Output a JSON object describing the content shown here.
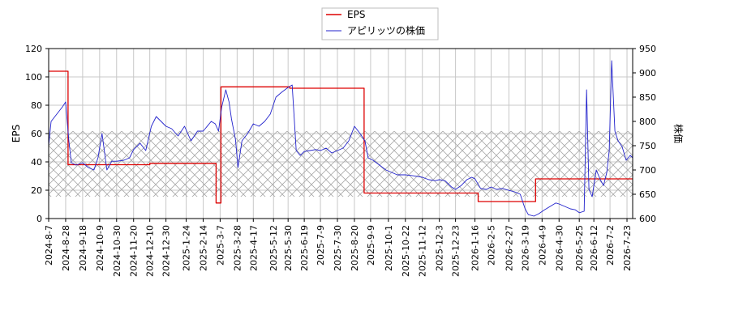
{
  "chart_data": {
    "type": "line",
    "legend": {
      "placement": "top-center",
      "entries": [
        {
          "label": "EPS",
          "color": "#dd0000"
        },
        {
          "label": "アピリッツの株価",
          "color": "#2222cc"
        }
      ]
    },
    "left_axis": {
      "label": "EPS",
      "ylim": [
        0,
        120
      ],
      "ticks": [
        "0",
        "20",
        "40",
        "60",
        "80",
        "100",
        "120"
      ]
    },
    "right_axis": {
      "label": "株価",
      "ylim": [
        600,
        950
      ],
      "ticks": [
        "600",
        "650",
        "700",
        "750",
        "800",
        "850",
        "900",
        "950"
      ]
    },
    "x_dates": [
      "2024-8-7",
      "2024-8-28",
      "2024-9-18",
      "2024-10-9",
      "2024-10-30",
      "2024-11-20",
      "2024-12-10",
      "2024-12-30",
      "2025-1-24",
      "2025-2-14",
      "2025-3-7",
      "2025-3-28",
      "2025-4-17",
      "2025-5-12",
      "2025-5-30",
      "2025-6-19",
      "2025-7-9",
      "2025-7-30",
      "2025-8-20",
      "2025-9-9",
      "2025-10-1",
      "2025-10-22",
      "2025-11-12",
      "2025-12-3",
      "2025-12-23",
      "2026-1-16",
      "2026-2-5",
      "2026-2-27",
      "2026-3-19",
      "2026-4-9",
      "2026-4-30",
      "2026-5-25",
      "2026-6-12",
      "2026-7-2",
      "2026-7-23"
    ],
    "hatched_band": {
      "axis": "right",
      "range": [
        645,
        780
      ]
    },
    "grid": true,
    "series": [
      {
        "name": "EPS",
        "axis": "left",
        "color": "#dd0000",
        "points": [
          [
            "2024-8-7",
            104
          ],
          [
            "2024-8-31",
            104
          ],
          [
            "2024-8-31",
            38
          ],
          [
            "2024-12-10",
            38
          ],
          [
            "2024-12-10",
            39
          ],
          [
            "2025-3-2",
            39
          ],
          [
            "2025-3-2",
            11
          ],
          [
            "2025-3-8",
            11
          ],
          [
            "2025-3-8",
            93
          ],
          [
            "2025-6-1",
            93
          ],
          [
            "2025-6-1",
            92
          ],
          [
            "2025-9-1",
            92
          ],
          [
            "2025-9-1",
            18
          ],
          [
            "2026-1-20",
            18
          ],
          [
            "2026-1-20",
            12
          ],
          [
            "2026-4-1",
            12
          ],
          [
            "2026-4-1",
            28
          ],
          [
            "2026-7-30",
            28
          ]
        ]
      },
      {
        "name": "アピリッツの株価",
        "axis": "right",
        "color": "#2222cc",
        "points": [
          [
            "2024-8-7",
            750
          ],
          [
            "2024-8-10",
            800
          ],
          [
            "2024-8-17",
            815
          ],
          [
            "2024-8-24",
            830
          ],
          [
            "2024-8-28",
            840
          ],
          [
            "2024-9-1",
            760
          ],
          [
            "2024-9-4",
            715
          ],
          [
            "2024-9-10",
            710
          ],
          [
            "2024-9-18",
            715
          ],
          [
            "2024-9-25",
            705
          ],
          [
            "2024-10-2",
            700
          ],
          [
            "2024-10-7",
            725
          ],
          [
            "2024-10-12",
            775
          ],
          [
            "2024-10-18",
            700
          ],
          [
            "2024-10-24",
            718
          ],
          [
            "2024-10-30",
            718
          ],
          [
            "2024-11-8",
            720
          ],
          [
            "2024-11-15",
            725
          ],
          [
            "2024-11-20",
            742
          ],
          [
            "2024-11-28",
            755
          ],
          [
            "2024-12-5",
            740
          ],
          [
            "2024-12-12",
            790
          ],
          [
            "2024-12-18",
            810
          ],
          [
            "2024-12-30",
            790
          ],
          [
            "2025-1-6",
            785
          ],
          [
            "2025-1-14",
            770
          ],
          [
            "2025-1-22",
            790
          ],
          [
            "2025-1-30",
            760
          ],
          [
            "2025-2-7",
            780
          ],
          [
            "2025-2-14",
            780
          ],
          [
            "2025-2-24",
            800
          ],
          [
            "2025-3-1",
            795
          ],
          [
            "2025-3-5",
            780
          ],
          [
            "2025-3-9",
            830
          ],
          [
            "2025-3-14",
            865
          ],
          [
            "2025-3-18",
            840
          ],
          [
            "2025-3-21",
            805
          ],
          [
            "2025-3-26",
            762
          ],
          [
            "2025-3-29",
            705
          ],
          [
            "2025-4-3",
            760
          ],
          [
            "2025-4-10",
            775
          ],
          [
            "2025-4-17",
            795
          ],
          [
            "2025-4-24",
            790
          ],
          [
            "2025-5-1",
            800
          ],
          [
            "2025-5-8",
            815
          ],
          [
            "2025-5-15",
            850
          ],
          [
            "2025-5-22",
            860
          ],
          [
            "2025-5-30",
            870
          ],
          [
            "2025-6-4",
            875
          ],
          [
            "2025-6-9",
            740
          ],
          [
            "2025-6-14",
            730
          ],
          [
            "2025-6-19",
            738
          ],
          [
            "2025-6-26",
            740
          ],
          [
            "2025-7-3",
            742
          ],
          [
            "2025-7-9",
            740
          ],
          [
            "2025-7-16",
            745
          ],
          [
            "2025-7-23",
            735
          ],
          [
            "2025-7-30",
            740
          ],
          [
            "2025-8-6",
            745
          ],
          [
            "2025-8-13",
            760
          ],
          [
            "2025-8-20",
            790
          ],
          [
            "2025-8-27",
            775
          ],
          [
            "2025-9-2",
            760
          ],
          [
            "2025-9-6",
            725
          ],
          [
            "2025-9-12",
            720
          ],
          [
            "2025-9-20",
            710
          ],
          [
            "2025-9-28",
            700
          ],
          [
            "2025-10-5",
            695
          ],
          [
            "2025-10-12",
            690
          ],
          [
            "2025-10-22",
            690
          ],
          [
            "2025-11-1",
            688
          ],
          [
            "2025-11-12",
            685
          ],
          [
            "2025-11-20",
            680
          ],
          [
            "2025-11-28",
            678
          ],
          [
            "2025-12-3",
            680
          ],
          [
            "2025-12-10",
            678
          ],
          [
            "2025-12-18",
            665
          ],
          [
            "2025-12-23",
            660
          ],
          [
            "2025-12-30",
            668
          ],
          [
            "2026-1-6",
            680
          ],
          [
            "2026-1-12",
            685
          ],
          [
            "2026-1-16",
            682
          ],
          [
            "2026-1-23",
            662
          ],
          [
            "2026-1-30",
            660
          ],
          [
            "2026-2-5",
            665
          ],
          [
            "2026-2-12",
            660
          ],
          [
            "2026-2-19",
            662
          ],
          [
            "2026-2-27",
            658
          ],
          [
            "2026-3-6",
            655
          ],
          [
            "2026-3-13",
            650
          ],
          [
            "2026-3-19",
            620
          ],
          [
            "2026-3-23",
            608
          ],
          [
            "2026-3-30",
            605
          ],
          [
            "2026-4-5",
            610
          ],
          [
            "2026-4-12",
            618
          ],
          [
            "2026-4-19",
            625
          ],
          [
            "2026-4-26",
            632
          ],
          [
            "2026-4-30",
            630
          ],
          [
            "2026-5-7",
            625
          ],
          [
            "2026-5-14",
            620
          ],
          [
            "2026-5-20",
            618
          ],
          [
            "2026-5-25",
            612
          ],
          [
            "2026-5-31",
            615
          ],
          [
            "2026-6-3",
            865
          ],
          [
            "2026-6-6",
            660
          ],
          [
            "2026-6-10",
            645
          ],
          [
            "2026-6-15",
            700
          ],
          [
            "2026-6-20",
            680
          ],
          [
            "2026-6-24",
            668
          ],
          [
            "2026-6-28",
            695
          ],
          [
            "2026-7-1",
            740
          ],
          [
            "2026-7-4",
            925
          ],
          [
            "2026-7-8",
            780
          ],
          [
            "2026-7-12",
            760
          ],
          [
            "2026-7-17",
            748
          ],
          [
            "2026-7-22",
            720
          ],
          [
            "2026-7-27",
            730
          ],
          [
            "2026-7-30",
            725
          ]
        ]
      }
    ]
  }
}
